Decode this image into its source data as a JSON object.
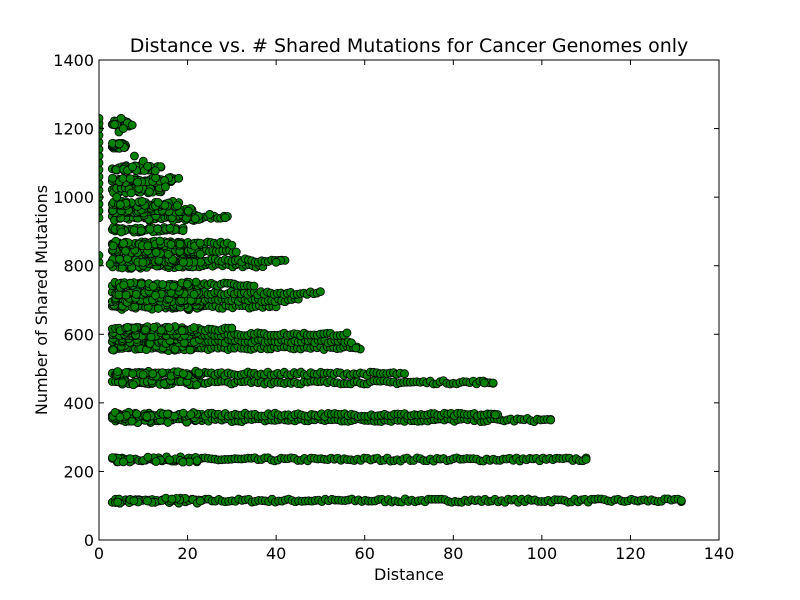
{
  "chart_data": {
    "type": "scatter",
    "title": "Distance vs. # Shared Mutations for Cancer Genomes only",
    "xlabel": "Distance",
    "ylabel": "Number of Shared Mutations",
    "xlim": [
      0,
      140
    ],
    "ylim": [
      0,
      1400
    ],
    "xticks": [
      0,
      20,
      40,
      60,
      80,
      100,
      120,
      140
    ],
    "yticks": [
      0,
      200,
      400,
      600,
      800,
      1000,
      1200,
      1400
    ],
    "grid": false,
    "legend": "none",
    "marker_color": "#008000",
    "marker_edge": "#000000",
    "bands": [
      {
        "y": 115,
        "x_min": 3,
        "x_max": 131.5
      },
      {
        "y": 235,
        "x_min": 3,
        "x_max": 110
      },
      {
        "y": 350,
        "x_min": 3,
        "x_max": 102
      },
      {
        "y": 365,
        "x_min": 3,
        "x_max": 90
      },
      {
        "y": 460,
        "x_min": 3,
        "x_max": 89
      },
      {
        "y": 485,
        "x_min": 3,
        "x_max": 68
      },
      {
        "y": 560,
        "x_min": 3,
        "x_max": 59
      },
      {
        "y": 580,
        "x_min": 3,
        "x_max": 57
      },
      {
        "y": 600,
        "x_min": 3,
        "x_max": 56
      },
      {
        "y": 615,
        "x_min": 3,
        "x_max": 30
      },
      {
        "y": 680,
        "x_min": 3,
        "x_max": 40
      },
      {
        "y": 700,
        "x_min": 3,
        "x_max": 45
      },
      {
        "y": 720,
        "x_min": 3,
        "x_max": 50
      },
      {
        "y": 745,
        "x_min": 3,
        "x_max": 35
      },
      {
        "y": 800,
        "x_min": 3,
        "x_max": 37
      },
      {
        "y": 815,
        "x_min": 3,
        "x_max": 42
      },
      {
        "y": 840,
        "x_min": 3,
        "x_max": 31
      },
      {
        "y": 865,
        "x_min": 3,
        "x_max": 29
      },
      {
        "y": 905,
        "x_min": 3,
        "x_max": 19
      },
      {
        "y": 940,
        "x_min": 3,
        "x_max": 29
      },
      {
        "y": 960,
        "x_min": 3,
        "x_max": 21
      },
      {
        "y": 980,
        "x_min": 3,
        "x_max": 18
      },
      {
        "y": 1020,
        "x_min": 3,
        "x_max": 14
      },
      {
        "y": 1050,
        "x_min": 3,
        "x_max": 17
      },
      {
        "y": 1085,
        "x_min": 3,
        "x_max": 14
      },
      {
        "y": 1150,
        "x_min": 3,
        "x_max": 6
      },
      {
        "y": 1215,
        "x_min": 3,
        "x_max": 7
      }
    ],
    "points": [
      [
        0,
        810
      ],
      [
        0,
        830
      ],
      [
        0,
        940
      ],
      [
        0,
        960
      ],
      [
        0,
        980
      ],
      [
        0,
        1000
      ],
      [
        0,
        1020
      ],
      [
        0,
        1040
      ],
      [
        0,
        1060
      ],
      [
        0,
        1080
      ],
      [
        0,
        1100
      ],
      [
        0,
        1120
      ],
      [
        0,
        1140
      ],
      [
        0,
        1160
      ],
      [
        0,
        1180
      ],
      [
        0,
        1200
      ],
      [
        0,
        1215
      ],
      [
        0,
        1230
      ],
      [
        2.5,
        805
      ],
      [
        4,
        1000
      ],
      [
        4.5,
        1190
      ],
      [
        5,
        1230
      ],
      [
        5.5,
        1200
      ],
      [
        7.5,
        1210
      ],
      [
        8,
        1120
      ],
      [
        10,
        1105
      ],
      [
        11,
        1090
      ],
      [
        15,
        1030
      ],
      [
        18,
        1055
      ],
      [
        28.5,
        940
      ],
      [
        25,
        950
      ],
      [
        30,
        860
      ],
      [
        41,
        815
      ],
      [
        40,
        810
      ],
      [
        58,
        560
      ],
      [
        69,
        485
      ],
      [
        87,
        458
      ],
      [
        89,
        458
      ],
      [
        102,
        350
      ],
      [
        110,
        235
      ],
      [
        131.5,
        115
      ],
      [
        89.5,
        365
      ]
    ]
  }
}
